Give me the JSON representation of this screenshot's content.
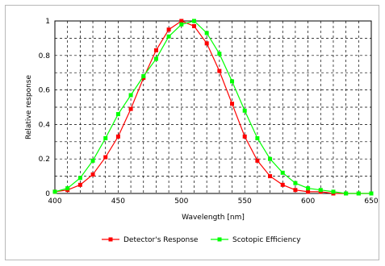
{
  "chart_data": {
    "type": "line",
    "title": "",
    "xlabel": "Wavelength [nm]",
    "ylabel": "Relative response",
    "xlim": [
      400,
      650
    ],
    "ylim": [
      0,
      1
    ],
    "x_ticks": [
      "400",
      "450",
      "500",
      "550",
      "600",
      "650"
    ],
    "y_ticks": [
      "0",
      "0.2",
      "0.4",
      "0.6",
      "0.8",
      "1"
    ],
    "grid": true,
    "legend_position": "bottom",
    "x": [
      400,
      410,
      420,
      430,
      440,
      450,
      460,
      470,
      480,
      490,
      500,
      510,
      520,
      530,
      540,
      550,
      560,
      570,
      580,
      590,
      600,
      610,
      620,
      630,
      640,
      650
    ],
    "series": [
      {
        "name": "Detector's Response",
        "color": "#ff0000",
        "marker": "square",
        "values": [
          0.01,
          0.02,
          0.05,
          0.11,
          0.21,
          0.33,
          0.49,
          0.67,
          0.83,
          0.95,
          1.0,
          0.97,
          0.87,
          0.71,
          0.52,
          0.33,
          0.19,
          0.1,
          0.05,
          0.02,
          0.01,
          0.01,
          0.0,
          0.0,
          0.0,
          0.0
        ]
      },
      {
        "name": "Scotopic Efficiency",
        "color": "#00ff00",
        "marker": "square",
        "values": [
          0.01,
          0.03,
          0.09,
          0.19,
          0.32,
          0.46,
          0.57,
          0.68,
          0.78,
          0.91,
          0.98,
          1.0,
          0.93,
          0.81,
          0.65,
          0.48,
          0.32,
          0.2,
          0.12,
          0.06,
          0.03,
          0.02,
          0.01,
          0.0,
          0.0,
          0.0
        ]
      }
    ]
  }
}
